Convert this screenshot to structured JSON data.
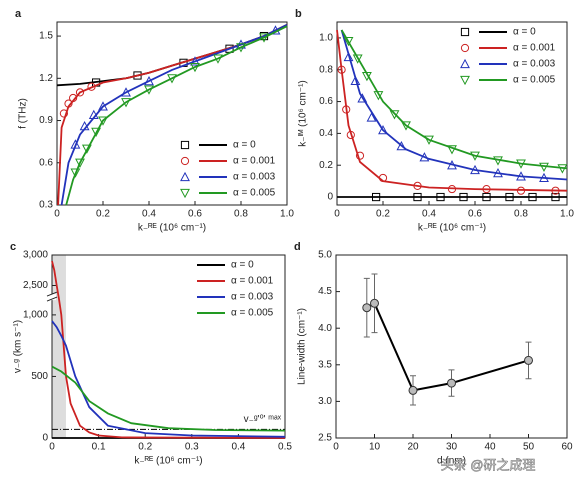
{
  "chart_data": [
    {
      "type": "line",
      "label": "a",
      "xlabel": "k₋ᴿᴱ (10⁶ cm⁻¹)",
      "ylabel": "f (THz)",
      "xlim": [
        0,
        1
      ],
      "ylim": [
        0.3,
        1.6
      ],
      "xticks": [
        0,
        0.2,
        0.4,
        0.6,
        0.8,
        {
          "value": 1,
          "label": "1.0"
        }
      ],
      "yticks": [
        0.3,
        0.6,
        0.9,
        1.2,
        1.5
      ],
      "legend": "lower right",
      "series": [
        {
          "name": "α = 0",
          "color": "#000000",
          "marker": "square",
          "x": [
            0,
            0.1,
            0.2,
            0.3,
            0.4,
            0.5,
            0.6,
            0.7,
            0.8,
            0.9,
            1.0
          ],
          "values": [
            1.15,
            1.16,
            1.18,
            1.2,
            1.24,
            1.29,
            1.34,
            1.39,
            1.44,
            1.5,
            1.58
          ],
          "marker_x": [
            0.17,
            0.35,
            0.55,
            0.75,
            0.9
          ],
          "marker_values": [
            1.17,
            1.22,
            1.31,
            1.41,
            1.5
          ]
        },
        {
          "name": "α = 0.001",
          "color": "#cc2222",
          "marker": "circle",
          "x": [
            0.005,
            0.02,
            0.05,
            0.1,
            0.2,
            0.3,
            0.4,
            0.5,
            0.6,
            0.7,
            0.8,
            0.9,
            1.0
          ],
          "values": [
            0.3,
            0.85,
            1.0,
            1.1,
            1.17,
            1.2,
            1.24,
            1.29,
            1.34,
            1.39,
            1.44,
            1.5,
            1.58
          ],
          "marker_x": [
            0.03,
            0.05,
            0.07,
            0.1,
            0.15
          ],
          "marker_values": [
            0.95,
            1.02,
            1.06,
            1.1,
            1.14
          ]
        },
        {
          "name": "α = 0.003",
          "color": "#2233bb",
          "marker": "triangle",
          "x": [
            0.02,
            0.05,
            0.1,
            0.2,
            0.3,
            0.4,
            0.5,
            0.6,
            0.7,
            0.8,
            0.9,
            1.0
          ],
          "values": [
            0.3,
            0.6,
            0.8,
            1.0,
            1.1,
            1.18,
            1.26,
            1.32,
            1.38,
            1.44,
            1.5,
            1.58
          ],
          "marker_x": [
            0.08,
            0.12,
            0.16,
            0.2,
            0.3,
            0.4,
            0.6,
            0.8,
            0.95
          ],
          "marker_values": [
            0.73,
            0.86,
            0.94,
            1.0,
            1.1,
            1.18,
            1.32,
            1.44,
            1.54
          ]
        },
        {
          "name": "α = 0.005",
          "color": "#229922",
          "marker": "triangle-down",
          "x": [
            0.04,
            0.07,
            0.1,
            0.2,
            0.3,
            0.4,
            0.5,
            0.6,
            0.7,
            0.8,
            0.9,
            1.0
          ],
          "values": [
            0.3,
            0.48,
            0.6,
            0.9,
            1.03,
            1.12,
            1.2,
            1.28,
            1.34,
            1.42,
            1.49,
            1.57
          ],
          "marker_x": [
            0.08,
            0.1,
            0.13,
            0.17,
            0.2,
            0.3,
            0.4,
            0.5,
            0.6,
            0.7,
            0.8,
            0.9
          ],
          "marker_values": [
            0.53,
            0.6,
            0.7,
            0.82,
            0.9,
            1.03,
            1.12,
            1.2,
            1.28,
            1.34,
            1.42,
            1.49
          ]
        }
      ]
    },
    {
      "type": "line",
      "label": "b",
      "xlabel": "k₋ᴿᴱ (10⁶ cm⁻¹)",
      "ylabel": "k₋ᴵᴹ (10⁶ cm⁻¹)",
      "xlim": [
        0,
        1
      ],
      "ylim": [
        -0.05,
        1.1
      ],
      "xticks": [
        0,
        0.2,
        0.4,
        0.6,
        0.8,
        {
          "value": 1,
          "label": "1.0"
        }
      ],
      "yticks": [
        0,
        0.2,
        0.4,
        0.6,
        0.8,
        {
          "value": 1,
          "label": "1.0"
        }
      ],
      "legend": "upper right",
      "series": [
        {
          "name": "α = 0",
          "color": "#000000",
          "marker": "square",
          "x": [
            0,
            1.0
          ],
          "values": [
            0,
            0
          ],
          "marker_x": [
            0.17,
            0.35,
            0.45,
            0.55,
            0.65,
            0.75,
            0.85,
            0.95
          ],
          "marker_values": [
            0,
            0,
            0,
            0,
            0,
            0,
            0,
            0
          ]
        },
        {
          "name": "α = 0.001",
          "color": "#cc2222",
          "marker": "circle",
          "x": [
            0,
            0.02,
            0.05,
            0.1,
            0.2,
            0.4,
            0.6,
            1.0
          ],
          "values": [
            1.05,
            0.8,
            0.45,
            0.22,
            0.1,
            0.06,
            0.05,
            0.04
          ],
          "marker_x": [
            0.02,
            0.04,
            0.06,
            0.1,
            0.2,
            0.35,
            0.5,
            0.65,
            0.8,
            0.95
          ],
          "marker_values": [
            0.8,
            0.55,
            0.39,
            0.26,
            0.12,
            0.07,
            0.05,
            0.05,
            0.04,
            0.04
          ]
        },
        {
          "name": "α = 0.003",
          "color": "#2233bb",
          "marker": "triangle",
          "x": [
            0.02,
            0.1,
            0.2,
            0.3,
            0.4,
            0.6,
            0.8,
            1.0
          ],
          "values": [
            1.05,
            0.65,
            0.42,
            0.3,
            0.24,
            0.17,
            0.13,
            0.11
          ],
          "marker_x": [
            0.05,
            0.08,
            0.11,
            0.15,
            0.2,
            0.28,
            0.38,
            0.5,
            0.6,
            0.7,
            0.8,
            0.9
          ],
          "marker_values": [
            0.88,
            0.73,
            0.62,
            0.5,
            0.42,
            0.32,
            0.25,
            0.2,
            0.17,
            0.15,
            0.13,
            0.12
          ]
        },
        {
          "name": "α = 0.005",
          "color": "#229922",
          "marker": "triangle-down",
          "x": [
            0.02,
            0.1,
            0.2,
            0.3,
            0.4,
            0.6,
            0.8,
            1.0
          ],
          "values": [
            1.05,
            0.85,
            0.6,
            0.45,
            0.36,
            0.26,
            0.21,
            0.18
          ],
          "marker_x": [
            0.05,
            0.09,
            0.13,
            0.18,
            0.25,
            0.3,
            0.4,
            0.5,
            0.6,
            0.7,
            0.8,
            0.9,
            0.98
          ],
          "marker_values": [
            0.98,
            0.87,
            0.76,
            0.64,
            0.52,
            0.45,
            0.36,
            0.3,
            0.26,
            0.23,
            0.21,
            0.19,
            0.18
          ]
        }
      ]
    },
    {
      "type": "line",
      "label": "c",
      "xlabel": "k₋ᴿᴱ (10⁶ cm⁻¹)",
      "ylabel": "v₋ᵍ (km s⁻¹)",
      "xlim": [
        0,
        0.5
      ],
      "ylim": [
        0,
        3000
      ],
      "ybreak": [
        1100,
        2400
      ],
      "xticks": [
        0,
        0.1,
        0.2,
        0.3,
        0.4,
        0.5
      ],
      "yticks": [
        0,
        500,
        {
          "value": 1000,
          "label": "1,000"
        },
        {
          "value": 2500,
          "label": "2,500"
        },
        {
          "value": 3000,
          "label": "3,000"
        }
      ],
      "legend": "upper right",
      "shaded_region": [
        0,
        0.03
      ],
      "reference_line": {
        "value": 70,
        "label": "v₋ᵍ'⁰' ᵐᵃˣ"
      },
      "series": [
        {
          "name": "α = 0",
          "color": "#000000",
          "x": [
            0,
            0.5
          ],
          "values": [
            0,
            0
          ]
        },
        {
          "name": "α = 0.001",
          "color": "#cc2222",
          "x": [
            0,
            0.005,
            0.01,
            0.015,
            0.02,
            0.03,
            0.04,
            0.06,
            0.08,
            0.1,
            0.15,
            0.5
          ],
          "values": [
            2900,
            2750,
            2500,
            1500,
            1000,
            500,
            280,
            100,
            45,
            20,
            5,
            0
          ]
        },
        {
          "name": "α = 0.003",
          "color": "#2233bb",
          "x": [
            0,
            0.01,
            0.02,
            0.03,
            0.05,
            0.08,
            0.12,
            0.2,
            0.3,
            0.5
          ],
          "values": [
            950,
            900,
            830,
            750,
            500,
            250,
            100,
            40,
            20,
            10
          ]
        },
        {
          "name": "α = 0.005",
          "color": "#229922",
          "x": [
            0,
            0.02,
            0.05,
            0.08,
            0.12,
            0.17,
            0.25,
            0.35,
            0.5
          ],
          "values": [
            580,
            540,
            450,
            300,
            200,
            120,
            80,
            65,
            60
          ]
        }
      ]
    },
    {
      "type": "errorbar",
      "label": "d",
      "xlabel": "d (nm)",
      "ylabel": "Line-width (cm⁻¹)",
      "xlim": [
        0,
        60
      ],
      "ylim": [
        2.5,
        5.0
      ],
      "xticks": [
        0,
        10,
        20,
        30,
        40,
        50,
        60
      ],
      "yticks": [
        2.5,
        {
          "value": 3,
          "label": "3.0"
        },
        3.5,
        {
          "value": 4,
          "label": "4.0"
        },
        4.5,
        {
          "value": 5,
          "label": "5.0"
        }
      ],
      "color": "#000000",
      "marker_color": "#bbbbbb",
      "x": [
        8,
        10,
        20,
        30,
        50
      ],
      "values": [
        4.28,
        4.34,
        3.15,
        3.25,
        3.56
      ],
      "errors": [
        0.4,
        0.4,
        0.2,
        0.18,
        0.25
      ]
    }
  ],
  "watermark": "头条 @研之成理"
}
